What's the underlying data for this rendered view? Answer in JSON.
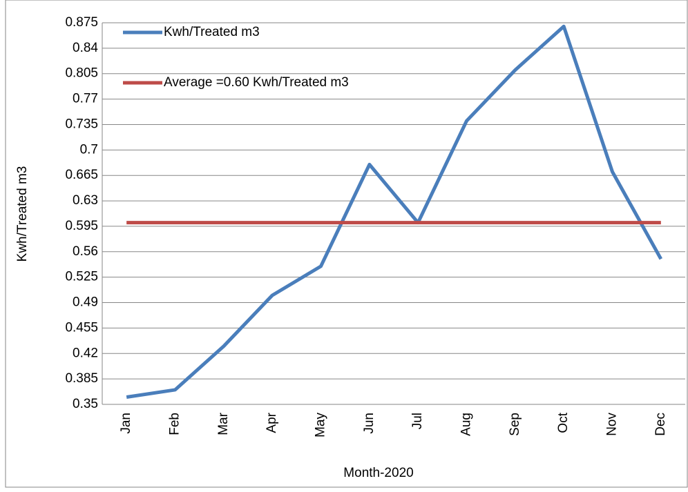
{
  "chart_data": {
    "type": "line",
    "x_label": "Month-2020",
    "y_label": "Kwh/Treated m3",
    "categories": [
      "Jan",
      "Feb",
      "Mar",
      "Apr",
      "May",
      "Jun",
      "Jul",
      "Aug",
      "Sep",
      "Oct",
      "Nov",
      "Dec"
    ],
    "series": [
      {
        "name": "Kwh/Treated m3",
        "color": "#4a7ebb",
        "values": [
          0.36,
          0.37,
          0.43,
          0.5,
          0.54,
          0.68,
          0.6,
          0.74,
          0.81,
          0.87,
          0.67,
          0.55
        ]
      },
      {
        "name": "Average =0.60 Kwh/Treated m3",
        "color": "#be4b48",
        "values": [
          0.6,
          0.6,
          0.6,
          0.6,
          0.6,
          0.6,
          0.6,
          0.6,
          0.6,
          0.6,
          0.6,
          0.6
        ]
      }
    ],
    "ylim": [
      0.35,
      0.875
    ],
    "yticks": [
      0.35,
      0.385,
      0.42,
      0.455,
      0.49,
      0.525,
      0.56,
      0.595,
      0.63,
      0.665,
      0.7,
      0.735,
      0.77,
      0.805,
      0.84,
      0.875
    ],
    "grid": true,
    "legend": "upper-left"
  }
}
